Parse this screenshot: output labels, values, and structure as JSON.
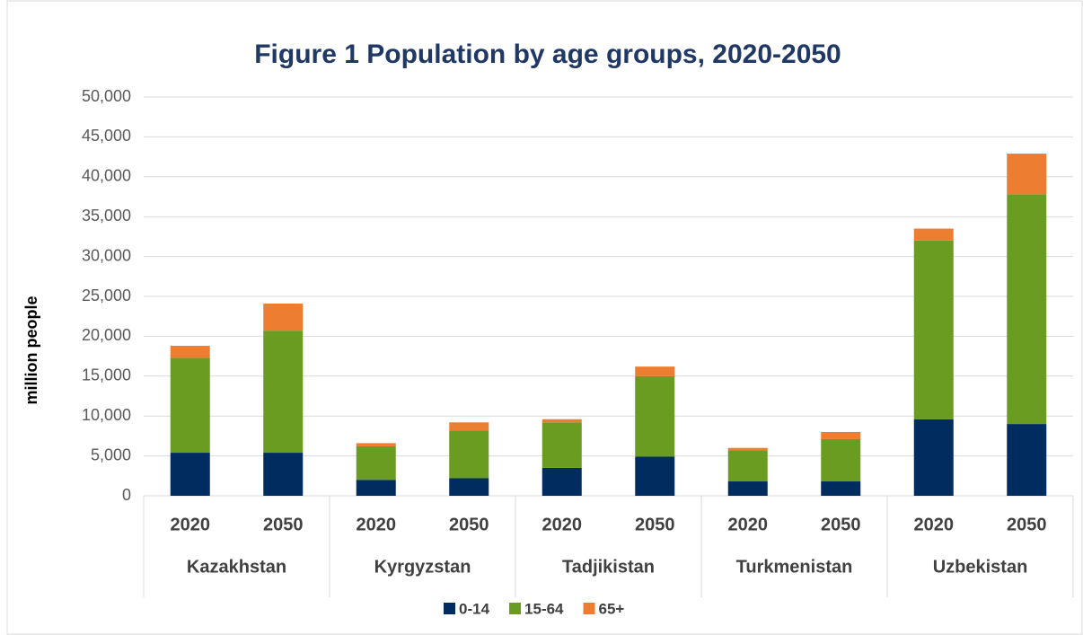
{
  "chart_data": {
    "type": "stacked_bar",
    "title": "Figure 1 Population by age groups, 2020-2050",
    "y_label": "million people",
    "groups": [
      "Kazakhstan",
      "Kyrgyzstan",
      "Tadjikistan",
      "Turkmenistan",
      "Uzbekistan"
    ],
    "categories": [
      "2020",
      "2050",
      "2020",
      "2050",
      "2020",
      "2050",
      "2020",
      "2050",
      "2020",
      "2050"
    ],
    "series": [
      {
        "name": "0-14",
        "color": "#002c5f",
        "values": [
          5400,
          5400,
          2000,
          2200,
          3500,
          4900,
          1800,
          1800,
          9600,
          9000
        ]
      },
      {
        "name": "15-64",
        "color": "#6a9c21",
        "values": [
          11900,
          15300,
          4200,
          6000,
          5700,
          10100,
          3900,
          5300,
          22400,
          28800
        ]
      },
      {
        "name": "65+",
        "color": "#ed7d31",
        "values": [
          1500,
          3400,
          400,
          1000,
          400,
          1200,
          300,
          900,
          1500,
          5100
        ]
      }
    ],
    "ylim": [
      0,
      50000
    ],
    "yticks": [
      0,
      {
        "value": 5000,
        "label": "5,000"
      },
      {
        "value": 10000,
        "label": "10,000"
      },
      {
        "value": 15000,
        "label": "15,000"
      },
      {
        "value": 20000,
        "label": "20,000"
      },
      {
        "value": 25000,
        "label": "25,000"
      },
      {
        "value": 30000,
        "label": "30,000"
      },
      {
        "value": 35000,
        "label": "35,000"
      },
      {
        "value": 40000,
        "label": "40,000"
      },
      {
        "value": 45000,
        "label": "45,000"
      },
      {
        "value": 50000,
        "label": "50,000"
      }
    ],
    "grid": true,
    "legend": "bottom"
  }
}
